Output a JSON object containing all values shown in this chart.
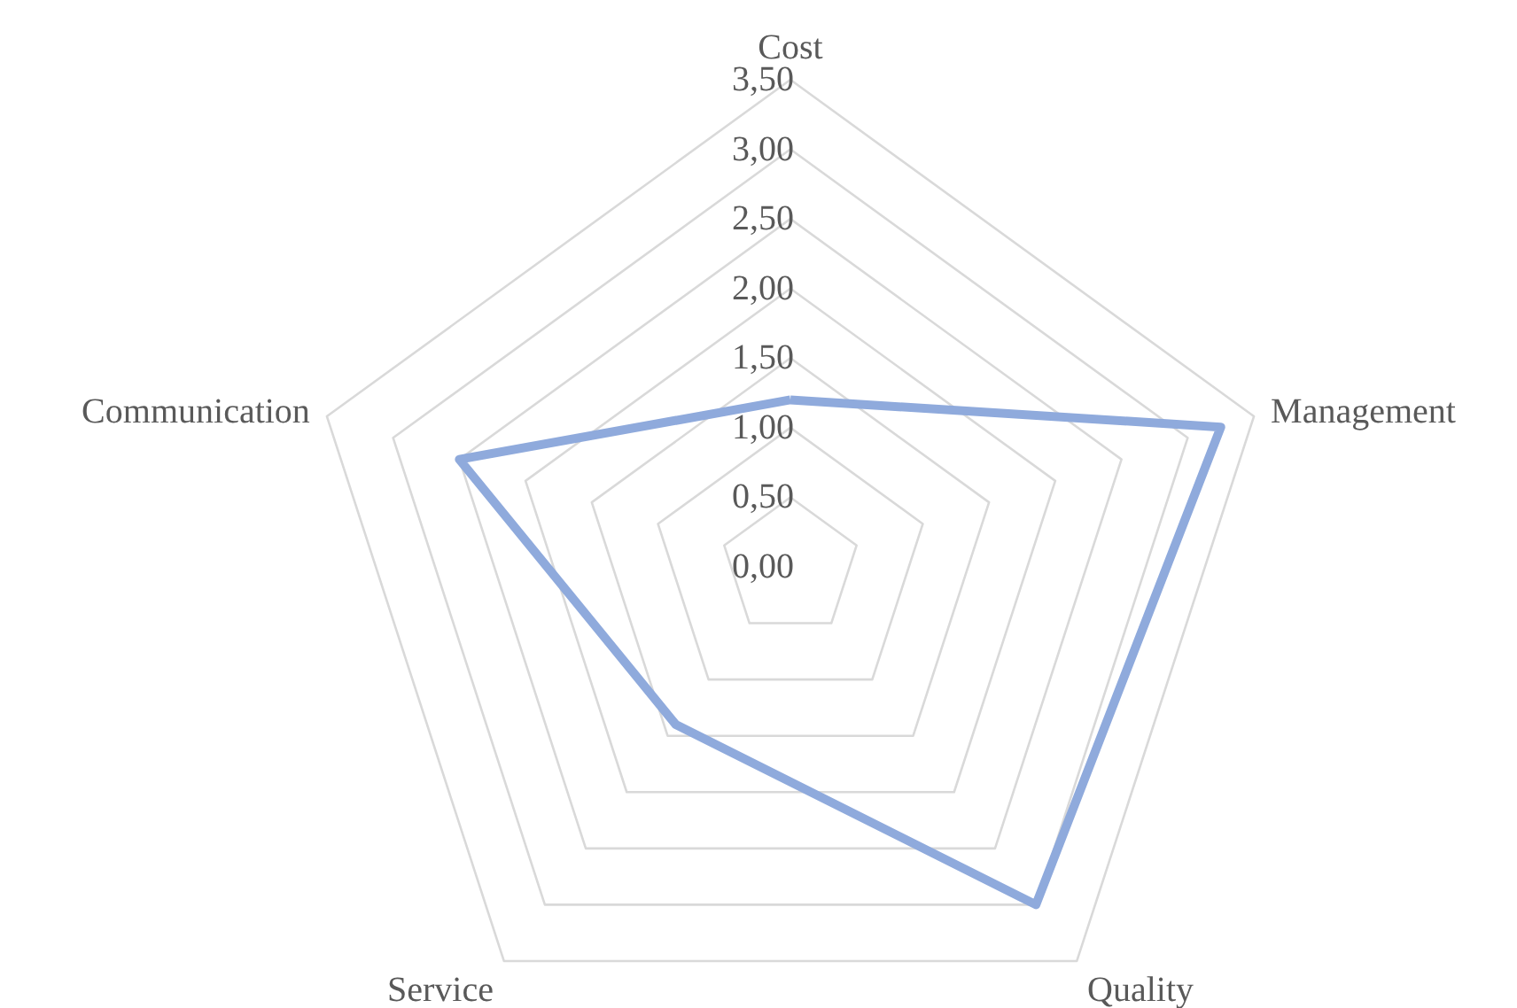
{
  "chart_data": {
    "type": "radar",
    "categories": [
      "Cost",
      "Management",
      "Quality",
      "Service",
      "Communication"
    ],
    "series": [
      {
        "color": "#8faadc",
        "values": [
          1.2,
          3.25,
          3.0,
          1.4,
          2.5
        ]
      }
    ],
    "ylim": [
      0,
      3.5
    ],
    "yticks": [
      {
        "value": 0,
        "label": "0,00"
      },
      {
        "value": 0.5,
        "label": "0,50"
      },
      {
        "value": 1,
        "label": "1,00"
      },
      {
        "value": 1.5,
        "label": "1,50"
      },
      {
        "value": 2,
        "label": "2,00"
      },
      {
        "value": 2.5,
        "label": "2,50"
      },
      {
        "value": 3,
        "label": "3,00"
      },
      {
        "value": 3.5,
        "label": "3,50"
      }
    ],
    "grid": true
  }
}
